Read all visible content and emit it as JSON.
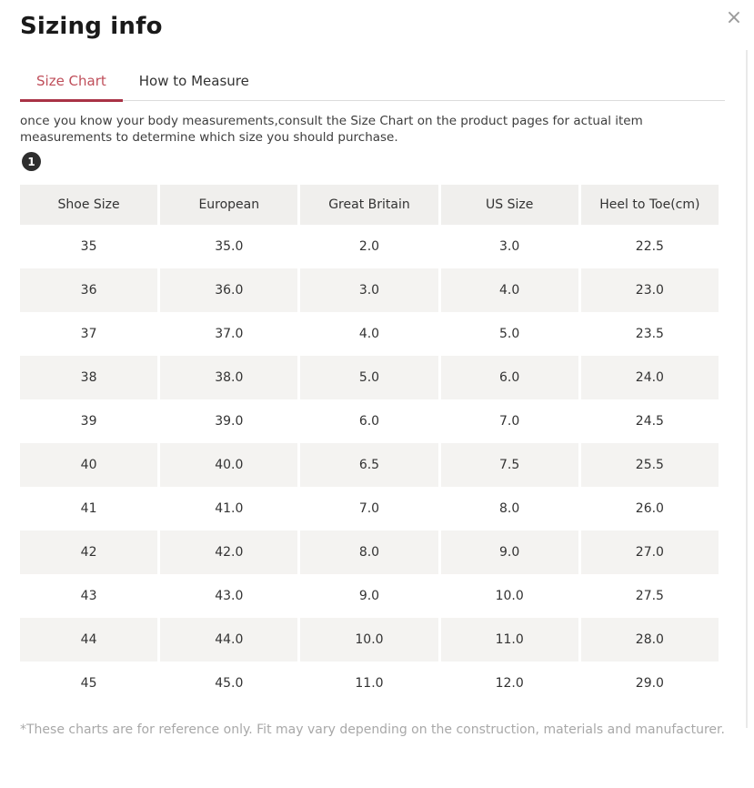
{
  "modal": {
    "title": "Sizing info",
    "close_icon": "×"
  },
  "tabs": [
    {
      "label": "Size Chart",
      "active": true
    },
    {
      "label": "How to Measure",
      "active": false
    }
  ],
  "intro_text": "once you know your body measurements,consult the Size Chart on the product pages for actual item measurements to determine which size you should purchase.",
  "step_badge": "1",
  "table": {
    "headers": [
      "Shoe Size",
      "European",
      "Great Britain",
      "US Size",
      "Heel to Toe(cm)"
    ],
    "rows": [
      [
        "35",
        "35.0",
        "2.0",
        "3.0",
        "22.5"
      ],
      [
        "36",
        "36.0",
        "3.0",
        "4.0",
        "23.0"
      ],
      [
        "37",
        "37.0",
        "4.0",
        "5.0",
        "23.5"
      ],
      [
        "38",
        "38.0",
        "5.0",
        "6.0",
        "24.0"
      ],
      [
        "39",
        "39.0",
        "6.0",
        "7.0",
        "24.5"
      ],
      [
        "40",
        "40.0",
        "6.5",
        "7.5",
        "25.5"
      ],
      [
        "41",
        "41.0",
        "7.0",
        "8.0",
        "26.0"
      ],
      [
        "42",
        "42.0",
        "8.0",
        "9.0",
        "27.0"
      ],
      [
        "43",
        "43.0",
        "9.0",
        "10.0",
        "27.5"
      ],
      [
        "44",
        "44.0",
        "10.0",
        "11.0",
        "28.0"
      ],
      [
        "45",
        "45.0",
        "11.0",
        "12.0",
        "29.0"
      ]
    ]
  },
  "footnote": "*These charts are for reference only. Fit may vary depending on the construction, materials and manufacturer.",
  "colors": {
    "accent_red": "#bf4e5a",
    "active_tab_underline": "#a93246",
    "header_row_bg": "#f0efed",
    "alt_row_bg": "#f4f3f1",
    "text_dark": "#333333",
    "muted_gray": "#a8a8a8"
  }
}
